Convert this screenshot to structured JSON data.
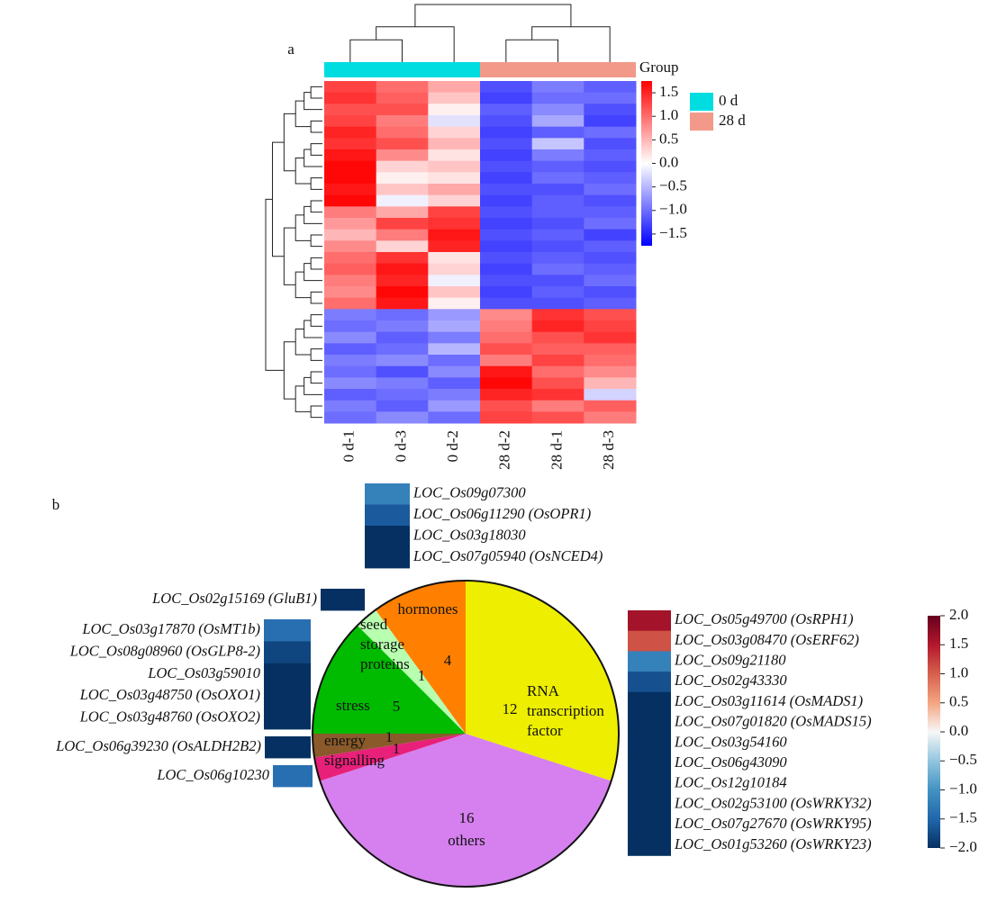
{
  "chart_data": [
    {
      "type": "heatmap",
      "panel_label": "a",
      "columns": [
        "0 d-1",
        "0 d-3",
        "0 d-2",
        "28 d-2",
        "28 d-1",
        "28 d-3"
      ],
      "matrix": [
        [
          1.3,
          1.0,
          0.6,
          -1.2,
          -0.9,
          -1.1
        ],
        [
          1.4,
          1.1,
          0.4,
          -1.3,
          -1.0,
          -1.0
        ],
        [
          1.2,
          1.2,
          0.1,
          -1.1,
          -0.8,
          -1.2
        ],
        [
          1.3,
          0.9,
          -0.2,
          -1.2,
          -0.6,
          -1.3
        ],
        [
          1.5,
          1.0,
          0.3,
          -1.3,
          -1.1,
          -1.0
        ],
        [
          1.4,
          1.2,
          0.5,
          -1.2,
          -0.4,
          -1.2
        ],
        [
          1.6,
          0.8,
          0.2,
          -1.3,
          -0.9,
          -1.1
        ],
        [
          1.7,
          0.3,
          0.4,
          -1.2,
          -1.1,
          -1.2
        ],
        [
          1.7,
          0.1,
          0.2,
          -1.3,
          -1.0,
          -1.1
        ],
        [
          1.6,
          0.4,
          0.6,
          -1.2,
          -1.2,
          -1.0
        ],
        [
          1.7,
          -0.1,
          0.3,
          -1.3,
          -1.1,
          -1.2
        ],
        [
          0.9,
          0.6,
          1.3,
          -1.2,
          -1.1,
          -1.1
        ],
        [
          0.7,
          1.3,
          1.4,
          -1.3,
          -1.2,
          -1.0
        ],
        [
          0.5,
          0.9,
          1.6,
          -1.2,
          -1.1,
          -1.3
        ],
        [
          0.8,
          0.3,
          1.5,
          -1.3,
          -1.2,
          -1.1
        ],
        [
          1.0,
          1.4,
          0.2,
          -1.2,
          -1.1,
          -1.2
        ],
        [
          1.1,
          1.6,
          0.3,
          -1.3,
          -1.0,
          -1.1
        ],
        [
          0.9,
          1.5,
          -0.1,
          -1.2,
          -1.2,
          -1.0
        ],
        [
          0.8,
          1.7,
          0.4,
          -1.3,
          -1.1,
          -1.2
        ],
        [
          1.0,
          1.6,
          0.1,
          -1.2,
          -1.2,
          -1.1
        ],
        [
          -0.9,
          -1.0,
          -0.7,
          0.8,
          1.4,
          1.2
        ],
        [
          -1.0,
          -0.9,
          -0.6,
          0.9,
          1.5,
          1.3
        ],
        [
          -0.8,
          -1.1,
          -0.9,
          1.0,
          1.2,
          1.4
        ],
        [
          -1.1,
          -1.0,
          -0.5,
          1.2,
          1.1,
          1.1
        ],
        [
          -0.9,
          -0.8,
          -1.0,
          0.9,
          1.3,
          1.0
        ],
        [
          -1.0,
          -1.2,
          -0.8,
          1.6,
          1.0,
          0.8
        ],
        [
          -0.8,
          -0.9,
          -1.1,
          1.7,
          1.2,
          0.5
        ],
        [
          -1.1,
          -1.0,
          -0.9,
          1.5,
          1.4,
          -0.3
        ],
        [
          -0.9,
          -1.1,
          -0.7,
          1.2,
          0.9,
          1.1
        ],
        [
          -1.0,
          -0.8,
          -1.0,
          1.3,
          1.2,
          0.9
        ]
      ],
      "clim": [
        -1.75,
        1.75
      ],
      "colors": [
        "#0000ff",
        "#ffffff",
        "#ff0000"
      ],
      "cticks": [
        1.5,
        {
          "value": 1,
          "label": "1.0"
        },
        0.5,
        {
          "value": 0,
          "label": "0.0"
        },
        {
          "value": -0.5,
          "label": "−0.5"
        },
        {
          "value": -1,
          "label": "−1.0"
        },
        {
          "value": -1.5,
          "label": "−1.5"
        }
      ],
      "legend_title": "Group",
      "groups": [
        {
          "name": "0 d",
          "color": "#00dde0"
        },
        {
          "name": "28 d",
          "color": "#f2998a"
        }
      ]
    },
    {
      "type": "pie",
      "panel_label": "b",
      "categories": [
        "RNA transcription factor",
        "others",
        "signalling",
        "energy",
        "stress",
        "seed storage proteins",
        "hormones"
      ],
      "values": [
        12,
        16,
        1,
        1,
        5,
        1,
        4
      ],
      "colors": [
        "#eeee00",
        "#d580ee",
        "#e8207a",
        "#8a5a2a",
        "#00bb00",
        "#b8ffb0",
        "#ff8000"
      ]
    },
    {
      "type": "gene-heatmap",
      "clim": [
        -2,
        2
      ],
      "colors": [
        "#053061",
        "#2166ac",
        "#4393c3",
        "#92c5de",
        "#f7f7f7",
        "#f4a582",
        "#d6604d",
        "#b2182b",
        "#67001f"
      ],
      "cticks": [
        {
          "value": 2,
          "label": "2.0"
        },
        1.5,
        {
          "value": 1,
          "label": "1.0"
        },
        0.5,
        {
          "value": 0,
          "label": "0.0"
        },
        {
          "value": -0.5,
          "label": "−0.5"
        },
        {
          "value": -1,
          "label": "−1.0"
        },
        {
          "value": -1.5,
          "label": "−1.5"
        },
        {
          "value": -2,
          "label": "−2.0"
        }
      ],
      "blocks": [
        {
          "genes": [
            "LOC_Os09g07300",
            "LOC_Os06g11290 (OsOPR1)",
            "LOC_Os03g18030",
            "LOC_Os07g05940 (OsNCED4)"
          ],
          "values": [
            -1.2,
            -1.6,
            -2.0,
            -2.0
          ]
        },
        {
          "genes": [
            "LOC_Os02g15169 (GluB1)"
          ],
          "values": [
            -2.0
          ]
        },
        {
          "genes": [
            "LOC_Os03g17870 (OsMT1b)",
            "LOC_Os08g08960 (OsGLP8-2)",
            "LOC_Os03g59010",
            "LOC_Os03g48750 (OsOXO1)",
            "LOC_Os03g48760 (OsOXO2)"
          ],
          "values": [
            -1.4,
            -1.8,
            -2.0,
            -2.0,
            -2.0
          ]
        },
        {
          "genes": [
            "LOC_Os06g39230 (OsALDH2B2)"
          ],
          "values": [
            -2.0
          ]
        },
        {
          "genes": [
            "LOC_Os06g10230"
          ],
          "values": [
            -1.4
          ]
        },
        {
          "genes": [
            "LOC_Os05g49700 (OsRPH1)",
            "LOC_Os03g08470 (OsERF62)",
            "LOC_Os09g21180",
            "LOC_Os02g43330",
            "LOC_Os03g11614 (OsMADS1)",
            "LOC_Os07g01820 (OsMADS15)",
            "LOC_Os03g54160",
            "LOC_Os06g43090",
            "LOC_Os12g10184",
            "LOC_Os02g53100 (OsWRKY32)",
            "LOC_Os07g27670 (OsWRKY95)",
            "LOC_Os01g53260 (OsWRKY23)"
          ],
          "values": [
            1.6,
            1.1,
            -1.2,
            -1.7,
            -2.0,
            -2.0,
            -2.0,
            -2.0,
            -2.0,
            -2.0,
            -2.0,
            -2.0
          ]
        }
      ]
    }
  ]
}
